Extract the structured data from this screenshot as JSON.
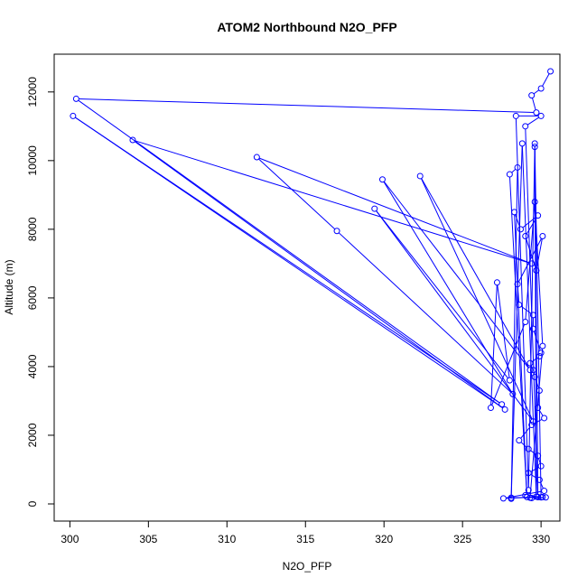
{
  "chart_data": {
    "type": "scatter",
    "title": "ATOM2 Northbound N2O_PFP",
    "xlabel": "N2O_PFP",
    "ylabel": "Altitude (m)",
    "xlim": [
      299,
      331.2
    ],
    "ylim": [
      -500,
      13100
    ],
    "xticks": [
      300,
      305,
      310,
      315,
      320,
      325,
      330
    ],
    "yticks": [
      0,
      2000,
      4000,
      6000,
      8000,
      10000,
      12000
    ],
    "marker": "open-circle",
    "connect_points": true,
    "grid": false,
    "legend": "none",
    "color": "#0000ff",
    "series": [
      {
        "points": [
          [
            330.6,
            12600
          ],
          [
            330.0,
            12100
          ],
          [
            329.4,
            11900
          ],
          [
            329.7,
            11400
          ],
          [
            300.4,
            11800
          ],
          [
            327.5,
            2900
          ],
          [
            300.2,
            11300
          ],
          [
            327.7,
            2750
          ],
          [
            304.0,
            10600
          ],
          [
            329.4,
            7000
          ],
          [
            311.9,
            10100
          ],
          [
            317.0,
            7950
          ],
          [
            328.2,
            3200
          ],
          [
            319.9,
            9450
          ],
          [
            329.3,
            3900
          ],
          [
            322.3,
            9550
          ],
          [
            329.5,
            2400
          ],
          [
            319.4,
            8600
          ],
          [
            328.0,
            3600
          ],
          [
            327.2,
            6450
          ],
          [
            326.8,
            2800
          ],
          [
            329.0,
            5300
          ],
          [
            329.6,
            8800
          ],
          [
            330.1,
            4600
          ],
          [
            329.3,
            180
          ],
          [
            330.0,
            190
          ],
          [
            329.6,
            10500
          ],
          [
            329.8,
            200
          ],
          [
            329.0,
            11000
          ],
          [
            330.0,
            11300
          ],
          [
            328.4,
            11300
          ],
          [
            329.2,
            400
          ],
          [
            329.6,
            10400
          ],
          [
            329.7,
            210
          ],
          [
            328.8,
            10500
          ],
          [
            328.1,
            150
          ],
          [
            328.5,
            9800
          ],
          [
            328.0,
            9600
          ],
          [
            329.1,
            200
          ],
          [
            328.3,
            8500
          ],
          [
            328.7,
            8000
          ],
          [
            329.8,
            8400
          ],
          [
            329.0,
            7800
          ],
          [
            329.7,
            6800
          ],
          [
            330.1,
            7800
          ],
          [
            328.5,
            6400
          ],
          [
            328.6,
            5800
          ],
          [
            329.5,
            5500
          ],
          [
            329.5,
            5100
          ],
          [
            330.0,
            4400
          ],
          [
            329.9,
            4300
          ],
          [
            329.3,
            4100
          ],
          [
            329.5,
            3900
          ],
          [
            329.6,
            3700
          ],
          [
            329.9,
            3300
          ],
          [
            329.8,
            2800
          ],
          [
            330.2,
            2500
          ],
          [
            329.4,
            2300
          ],
          [
            328.6,
            1850
          ],
          [
            329.2,
            1600
          ],
          [
            329.8,
            1400
          ],
          [
            330.0,
            1100
          ],
          [
            329.2,
            900
          ],
          [
            329.9,
            700
          ],
          [
            330.2,
            380
          ],
          [
            327.6,
            160
          ],
          [
            329.8,
            200
          ],
          [
            328.1,
            180
          ],
          [
            330.3,
            190
          ],
          [
            329.4,
            170
          ],
          [
            330.1,
            200
          ],
          [
            329.0,
            250
          ]
        ]
      }
    ]
  }
}
